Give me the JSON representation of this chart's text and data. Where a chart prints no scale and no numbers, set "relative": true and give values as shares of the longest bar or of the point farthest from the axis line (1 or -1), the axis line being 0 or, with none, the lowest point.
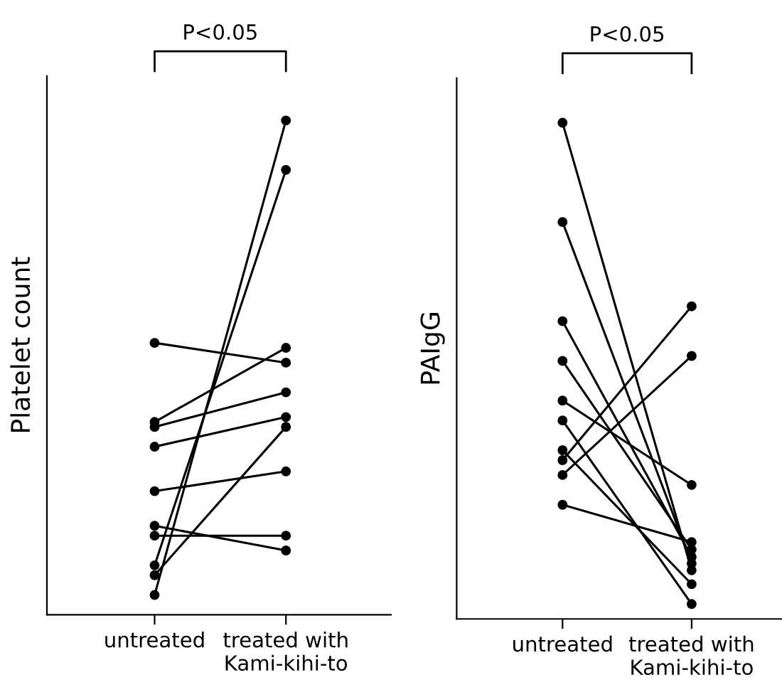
{
  "chart_data": [
    {
      "type": "line",
      "ylabel": "Platelet count",
      "relative": true,
      "marker": "circle",
      "annotations": [
        "P<0.05"
      ],
      "categories": [
        "untreated",
        "treated with\nKami-kihi-to"
      ],
      "series": [
        {
          "color": "#000000",
          "values": [
            0.55,
            0.51
          ]
        },
        {
          "color": "#000000",
          "values": [
            0.39,
            0.54
          ]
        },
        {
          "color": "#000000",
          "values": [
            0.38,
            0.45
          ]
        },
        {
          "color": "#000000",
          "values": [
            0.34,
            0.4
          ]
        },
        {
          "color": "#000000",
          "values": [
            0.25,
            0.29
          ]
        },
        {
          "color": "#000000",
          "values": [
            0.18,
            0.13
          ]
        },
        {
          "color": "#000000",
          "values": [
            0.16,
            0.16
          ]
        },
        {
          "color": "#000000",
          "values": [
            0.1,
            0.9
          ]
        },
        {
          "color": "#000000",
          "values": [
            0.08,
            0.38
          ]
        },
        {
          "color": "#000000",
          "values": [
            0.04,
            1.0
          ]
        }
      ]
    },
    {
      "type": "line",
      "ylabel": "PAIgG",
      "relative": true,
      "marker": "circle",
      "annotations": [
        "P<0.05"
      ],
      "categories": [
        "untreated",
        "treated with\nKami-kihi-to"
      ],
      "series": [
        {
          "color": "#000000",
          "values": [
            1.0,
            0.098
          ]
        },
        {
          "color": "#000000",
          "values": [
            0.8,
            0.112
          ]
        },
        {
          "color": "#000000",
          "values": [
            0.6,
            0.125
          ]
        },
        {
          "color": "#000000",
          "values": [
            0.52,
            0.14
          ]
        },
        {
          "color": "#000000",
          "values": [
            0.44,
            0.27
          ]
        },
        {
          "color": "#000000",
          "values": [
            0.4,
            0.03
          ]
        },
        {
          "color": "#000000",
          "values": [
            0.34,
            0.07
          ]
        },
        {
          "color": "#000000",
          "values": [
            0.32,
            0.63
          ]
        },
        {
          "color": "#000000",
          "values": [
            0.29,
            0.53
          ]
        },
        {
          "color": "#000000",
          "values": [
            0.23,
            0.155
          ]
        }
      ]
    }
  ]
}
